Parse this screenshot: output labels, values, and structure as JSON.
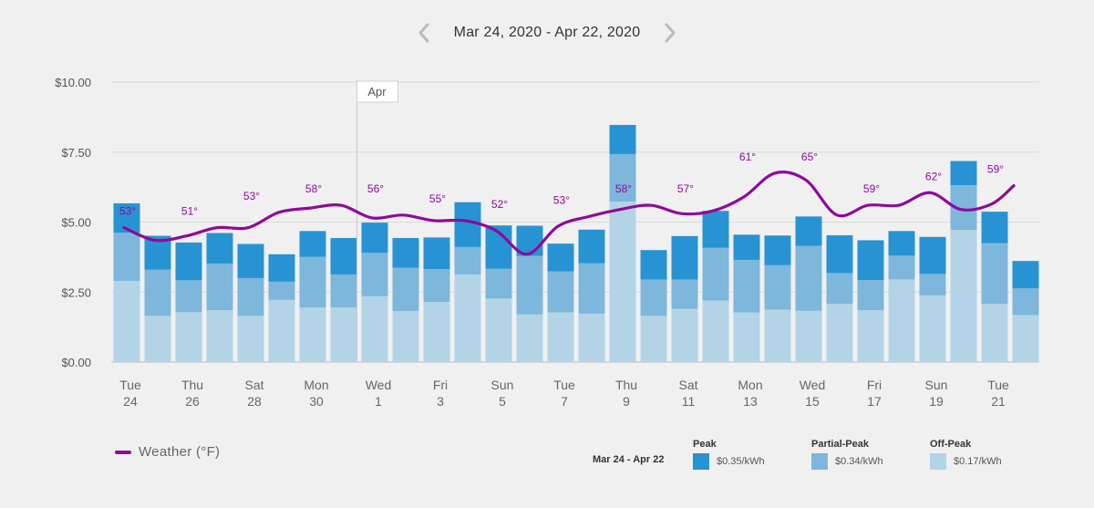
{
  "header": {
    "date_range": "Mar 24, 2020 - Apr 22, 2020",
    "prev_icon": "chevron-left-icon",
    "next_icon": "chevron-right-icon"
  },
  "chart_data": {
    "type": "bar",
    "stacked": true,
    "ylim": [
      0,
      10
    ],
    "yticks": [
      "$0.00",
      "$2.50",
      "$5.00",
      "$7.50",
      "$10.00"
    ],
    "grid": true,
    "month_marker": {
      "label": "Apr",
      "after_index": 7
    },
    "categories": [
      "Mar 24",
      "Mar 25",
      "Mar 26",
      "Mar 27",
      "Mar 28",
      "Mar 29",
      "Mar 30",
      "Mar 31",
      "Apr 1",
      "Apr 2",
      "Apr 3",
      "Apr 4",
      "Apr 5",
      "Apr 6",
      "Apr 7",
      "Apr 8",
      "Apr 9",
      "Apr 10",
      "Apr 11",
      "Apr 12",
      "Apr 13",
      "Apr 14",
      "Apr 15",
      "Apr 16",
      "Apr 17",
      "Apr 18",
      "Apr 19",
      "Apr 20",
      "Apr 21",
      "Apr 22"
    ],
    "x_tick_labels": [
      {
        "index": 0,
        "day": "Tue",
        "date": "24"
      },
      {
        "index": 2,
        "day": "Thu",
        "date": "26"
      },
      {
        "index": 4,
        "day": "Sat",
        "date": "28"
      },
      {
        "index": 6,
        "day": "Mon",
        "date": "30"
      },
      {
        "index": 8,
        "day": "Wed",
        "date": "1"
      },
      {
        "index": 10,
        "day": "Fri",
        "date": "3"
      },
      {
        "index": 12,
        "day": "Sun",
        "date": "5"
      },
      {
        "index": 14,
        "day": "Tue",
        "date": "7"
      },
      {
        "index": 16,
        "day": "Thu",
        "date": "9"
      },
      {
        "index": 18,
        "day": "Sat",
        "date": "11"
      },
      {
        "index": 20,
        "day": "Mon",
        "date": "13"
      },
      {
        "index": 22,
        "day": "Wed",
        "date": "15"
      },
      {
        "index": 24,
        "day": "Fri",
        "date": "17"
      },
      {
        "index": 26,
        "day": "Sun",
        "date": "19"
      },
      {
        "index": 28,
        "day": "Tue",
        "date": "21"
      }
    ],
    "series": [
      {
        "name": "Off-Peak",
        "color": "#b3d4e6",
        "values": [
          2.9,
          1.65,
          1.78,
          1.85,
          1.65,
          2.22,
          1.95,
          1.95,
          2.35,
          1.82,
          2.15,
          3.13,
          2.27,
          1.7,
          1.77,
          1.73,
          5.73,
          1.65,
          1.9,
          2.2,
          1.77,
          1.87,
          1.83,
          2.08,
          1.85,
          2.95,
          2.38,
          4.72,
          2.08,
          1.68
        ]
      },
      {
        "name": "Partial-Peak",
        "color": "#7db7dc",
        "values": [
          1.72,
          1.65,
          1.14,
          1.67,
          1.35,
          0.65,
          1.81,
          1.18,
          1.55,
          1.55,
          1.17,
          0.98,
          1.06,
          2.09,
          1.47,
          1.8,
          1.7,
          1.3,
          1.05,
          1.88,
          1.88,
          1.59,
          2.32,
          1.1,
          1.08,
          0.85,
          0.77,
          1.6,
          2.17,
          0.95
        ]
      },
      {
        "name": "Peak",
        "color": "#2793d3",
        "values": [
          1.05,
          1.21,
          1.35,
          1.09,
          1.22,
          0.98,
          0.92,
          1.3,
          1.08,
          1.06,
          1.13,
          1.6,
          1.55,
          1.08,
          0.99,
          1.2,
          1.04,
          1.05,
          1.55,
          1.32,
          0.9,
          1.06,
          1.05,
          1.35,
          1.42,
          0.88,
          1.32,
          0.86,
          1.12,
          0.98
        ]
      }
    ],
    "weather_series": {
      "name": "Weather (°F)",
      "color": "#8e0a9a",
      "values_dollar_scale": [
        4.8,
        4.35,
        4.5,
        4.8,
        4.8,
        5.35,
        5.5,
        5.6,
        5.15,
        5.25,
        5.05,
        5.05,
        4.7,
        3.85,
        4.85,
        5.2,
        5.45,
        5.6,
        5.3,
        5.4,
        5.9,
        6.75,
        6.5,
        5.25,
        5.6,
        5.6,
        6.05,
        5.45,
        5.65,
        6.3
      ],
      "temperature_labels": [
        {
          "index": 0,
          "label": "53°"
        },
        {
          "index": 2,
          "label": "51°"
        },
        {
          "index": 4,
          "label": "53°"
        },
        {
          "index": 6,
          "label": "58°"
        },
        {
          "index": 8,
          "label": "56°"
        },
        {
          "index": 10,
          "label": "55°"
        },
        {
          "index": 12,
          "label": "52°"
        },
        {
          "index": 14,
          "label": "53°"
        },
        {
          "index": 16,
          "label": "58°"
        },
        {
          "index": 18,
          "label": "57°"
        },
        {
          "index": 20,
          "label": "61°"
        },
        {
          "index": 22,
          "label": "65°"
        },
        {
          "index": 24,
          "label": "59°"
        },
        {
          "index": 26,
          "label": "62°"
        },
        {
          "index": 28,
          "label": "59°"
        }
      ]
    }
  },
  "legend": {
    "weather_label": "Weather (°F)",
    "period_label": "Mar 24 - Apr 22",
    "rates": [
      {
        "name": "Peak",
        "price": "$0.35/kWh",
        "color": "#2793d3"
      },
      {
        "name": "Partial-Peak",
        "price": "$0.34/kWh",
        "color": "#7db7dc"
      },
      {
        "name": "Off-Peak",
        "price": "$0.17/kWh",
        "color": "#b3d4e6"
      }
    ]
  }
}
